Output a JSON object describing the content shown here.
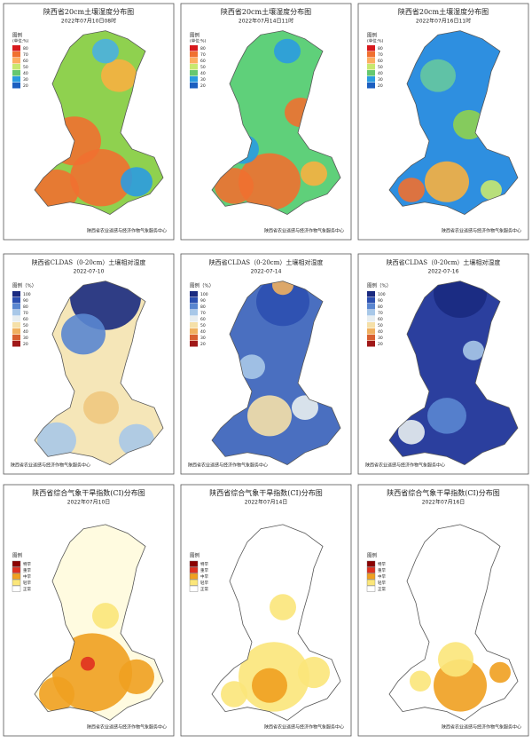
{
  "panels": [
    {
      "title": "陕西省20cm土壤湿度分布图",
      "date": "2022年07月10日08时",
      "legend_title": "图例",
      "legend_unit": "(单位:%)",
      "legend_items": [
        "80",
        "70",
        "60",
        "50",
        "40",
        "30",
        "20"
      ],
      "footer": "陕西省农业遥感与经济作物气象服务中心"
    },
    {
      "title": "陕西省20cm土壤湿度分布图",
      "date": "2022年07月14日11时",
      "legend_title": "图例",
      "legend_unit": "(单位:%)",
      "legend_items": [
        "80",
        "70",
        "60",
        "50",
        "40",
        "30",
        "20"
      ],
      "footer": "陕西省农业遥感与经济作物气象服务中心"
    },
    {
      "title": "陕西省20cm土壤湿度分布图",
      "date": "2022年07月16日11时",
      "legend_title": "图例",
      "legend_unit": "(单位:%)",
      "legend_items": [
        "80",
        "70",
        "60",
        "50",
        "40",
        "30",
        "20"
      ],
      "footer": "陕西省农业遥感与经济作物气象服务中心"
    },
    {
      "title": "陕西省CLDAS（0-20cm）土壤相对湿度",
      "date": "2022-07-10",
      "legend_title": "图例（%）",
      "legend_items": [
        "100",
        "90",
        "80",
        "70",
        "60",
        "50",
        "40",
        "30",
        "20"
      ],
      "footer": "陕西省农业遥感与经济作物气象服务中心"
    },
    {
      "title": "陕西省CLDAS（0-20cm）土壤相对湿度",
      "date": "2022-07-14",
      "legend_title": "图例（%）",
      "legend_items": [
        "100",
        "90",
        "80",
        "70",
        "60",
        "50",
        "40",
        "30",
        "20"
      ],
      "footer": "陕西省农业遥感与经济作物气象服务中心"
    },
    {
      "title": "陕西省CLDAS（0-20cm）土壤相对湿度",
      "date": "2022-07-16",
      "legend_title": "图例（%）",
      "legend_items": [
        "100",
        "90",
        "80",
        "70",
        "60",
        "50",
        "40",
        "30",
        "20"
      ],
      "footer": "陕西省农业遥感与经济作物气象服务中心"
    },
    {
      "title": "陕西省综合气象干旱指数(CI)分布图",
      "date": "2022年07月10日",
      "legend_title": "图例",
      "legend_items": [
        "特旱",
        "重旱",
        "中旱",
        "轻旱",
        "正常"
      ],
      "footer": "陕西省农业遥感与经济作物气象服务中心"
    },
    {
      "title": "陕西省综合气象干旱指数(CI)分布图",
      "date": "2022年07月14日",
      "legend_title": "图例",
      "legend_items": [
        "特旱",
        "重旱",
        "中旱",
        "轻旱",
        "正常"
      ],
      "footer": "陕西省农业遥感与经济作物气象服务中心"
    },
    {
      "title": "陕西省综合气象干旱指数(CI)分布图",
      "date": "2022年07月16日",
      "legend_title": "图例",
      "legend_items": [
        "特旱",
        "重旱",
        "中旱",
        "轻旱",
        "正常"
      ],
      "footer": "陕西省农业遥感与经济作物气象服务中心"
    }
  ]
}
